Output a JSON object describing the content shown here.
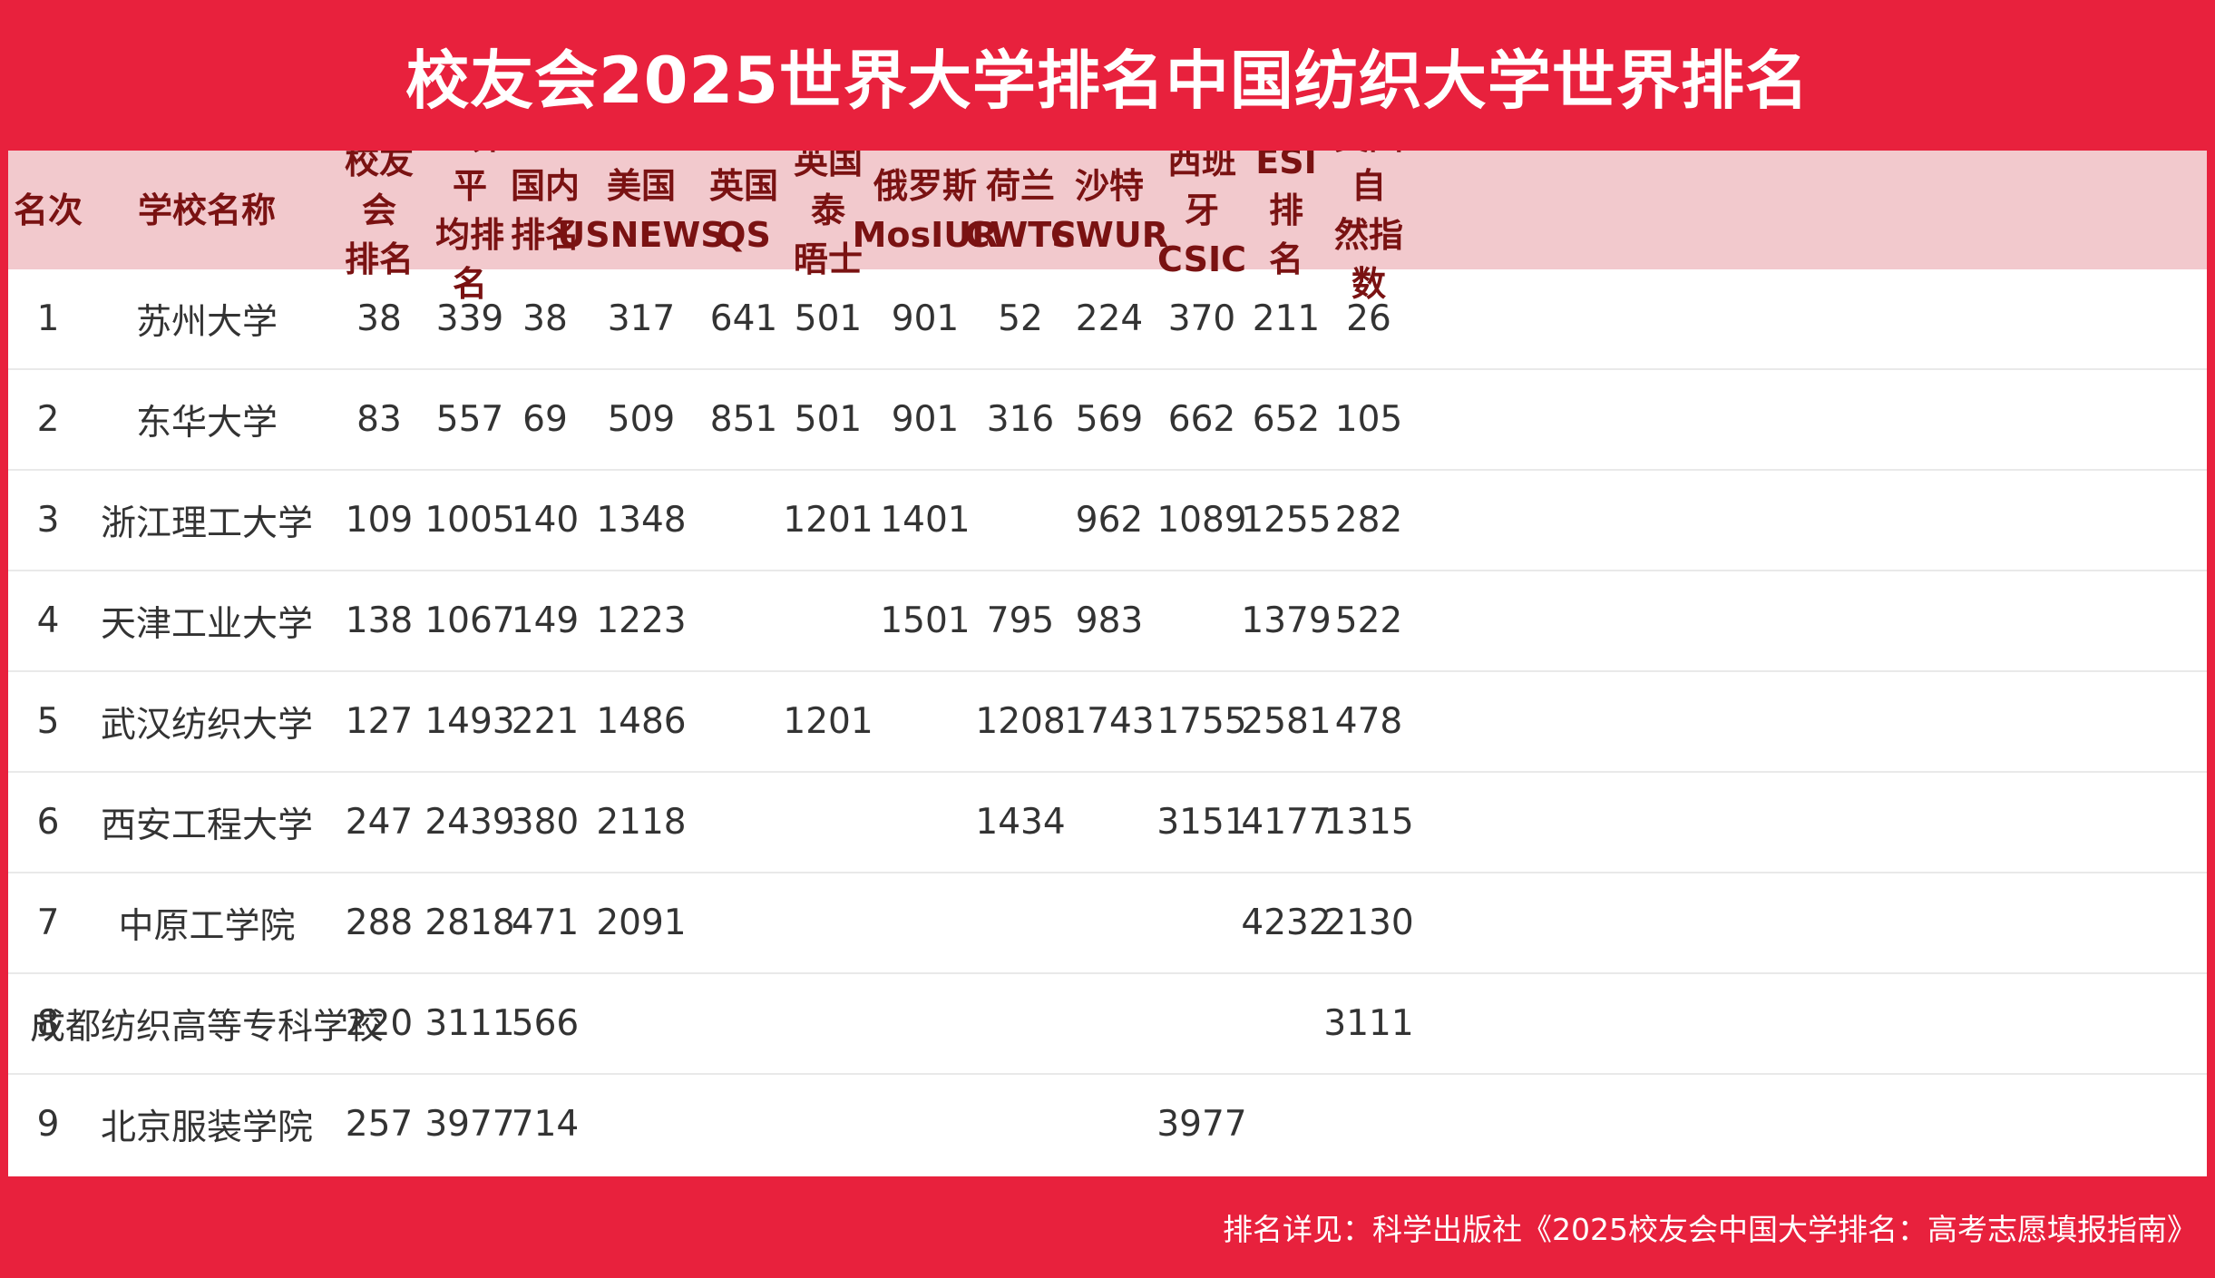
{
  "title": "校友会2025世界大学排名中国纺织大学世界排名",
  "columns": [
    "名次",
    "学校名称",
    "校友会\n排名",
    "世界平\n均排名",
    "国内\n排名",
    "美国\nUSNEWS",
    "英国\nQS",
    "英国泰\n晤士",
    "俄罗斯\nMosIUR",
    "荷兰\nCWTS",
    "沙特\nCWUR",
    "西班牙\nCSIC",
    "ESI排\n名",
    "英国自\n然指数"
  ],
  "rows": [
    [
      "1",
      "苏州大学",
      "38",
      "339",
      "38",
      "317",
      "641",
      "501",
      "901",
      "52",
      "224",
      "370",
      "211",
      "26"
    ],
    [
      "2",
      "东华大学",
      "83",
      "557",
      "69",
      "509",
      "851",
      "501",
      "901",
      "316",
      "569",
      "662",
      "652",
      "105"
    ],
    [
      "3",
      "浙江理工大学",
      "109",
      "1005",
      "140",
      "1348",
      "",
      "1201",
      "1401",
      "",
      "962",
      "1089",
      "1255",
      "282"
    ],
    [
      "4",
      "天津工业大学",
      "138",
      "1067",
      "149",
      "1223",
      "",
      "",
      "1501",
      "795",
      "983",
      "",
      "1379",
      "522"
    ],
    [
      "5",
      "武汉纺织大学",
      "127",
      "1493",
      "221",
      "1486",
      "",
      "1201",
      "",
      "1208",
      "1743",
      "1755",
      "2581",
      "478"
    ],
    [
      "6",
      "西安工程大学",
      "247",
      "2439",
      "380",
      "2118",
      "",
      "",
      "",
      "1434",
      "",
      "3151",
      "4177",
      "1315"
    ],
    [
      "7",
      "中原工学院",
      "288",
      "2818",
      "471",
      "2091",
      "",
      "",
      "",
      "",
      "",
      "",
      "4232",
      "2130"
    ],
    [
      "8",
      "成都纺织高等专科学校",
      "220",
      "3111",
      "566",
      "",
      "",
      "",
      "",
      "",
      "",
      "",
      "",
      "3111"
    ],
    [
      "9",
      "北京服装学院",
      "257",
      "3977",
      "714",
      "",
      "",
      "",
      "",
      "",
      "",
      "3977",
      "",
      ""
    ]
  ],
  "footer": "排名详见：科学出版社《2025校友会中国大学排名：高考志愿填报指南》",
  "colors": {
    "background": "#e8213d",
    "header_bg": "#f2c9cd",
    "header_text": "#7a1212"
  }
}
